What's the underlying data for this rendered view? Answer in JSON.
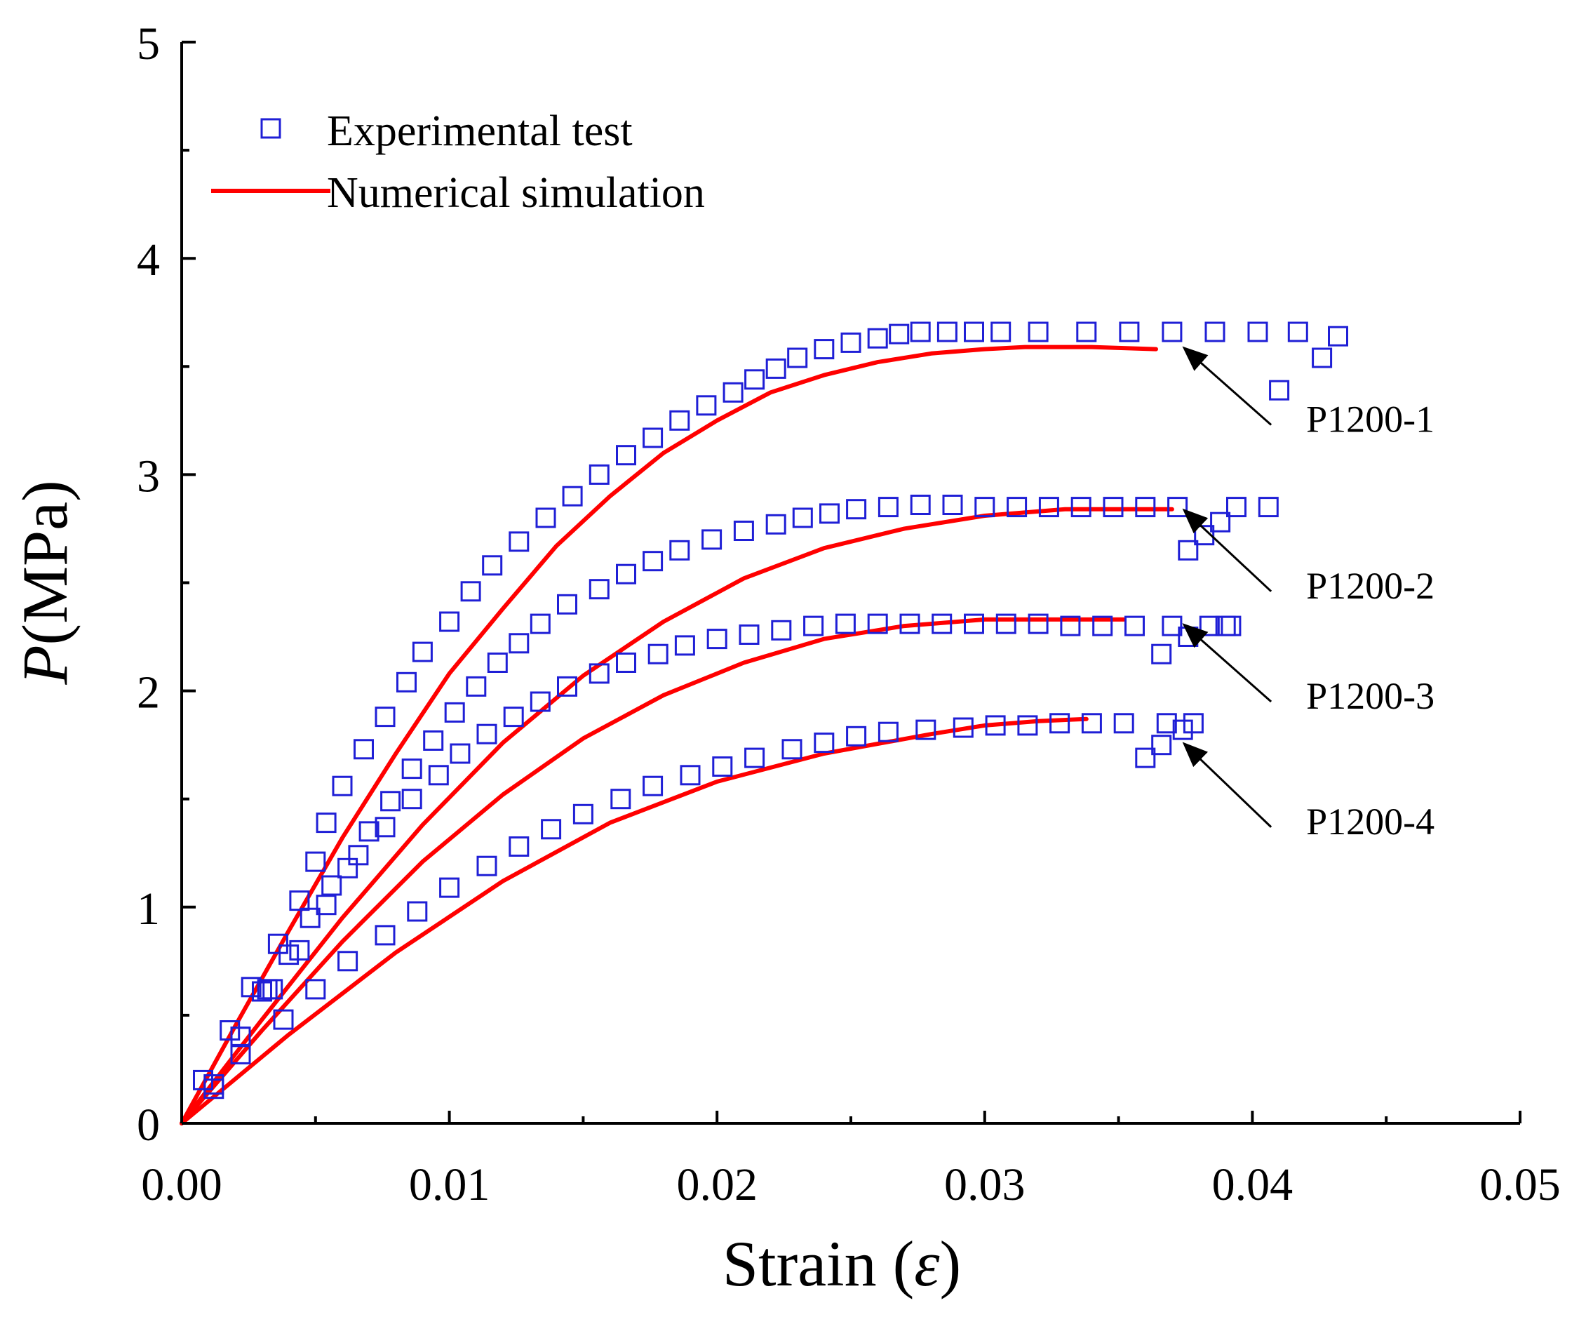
{
  "chart_data": {
    "type": "scatter",
    "title": "",
    "xlabel_main": "Strain (",
    "xlabel_symbol": "ε",
    "xlabel_close": ")",
    "ylabel_symbol": "P",
    "ylabel_unit": "(MPa)",
    "xlim": [
      0,
      0.05
    ],
    "ylim": [
      0,
      5
    ],
    "xticks": [
      0.0,
      0.01,
      0.02,
      0.03,
      0.04,
      0.05
    ],
    "xtick_labels": [
      "0.00",
      "0.01",
      "0.02",
      "0.03",
      "0.04",
      "0.05"
    ],
    "yticks": [
      0,
      1,
      2,
      3,
      4,
      5
    ],
    "ytick_labels": [
      "0",
      "1",
      "2",
      "3",
      "4",
      "5"
    ],
    "grid": false,
    "legend": {
      "position": "top-left",
      "entries": [
        {
          "label": "Experimental test",
          "marker": "open-square",
          "color": "#1f1fd6"
        },
        {
          "label": "Numerical simulation",
          "marker": "line",
          "color": "#ff0000"
        }
      ]
    },
    "colors": {
      "experimental": "#1f1fd6",
      "simulation": "#ff0000",
      "axis": "#000000"
    },
    "annotations": [
      {
        "text": "P1200-1",
        "arrow_to": [
          0.0375,
          3.58
        ],
        "arrow_from": [
          0.0407,
          3.23
        ]
      },
      {
        "text": "P1200-2",
        "arrow_to": [
          0.0375,
          2.83
        ],
        "arrow_from": [
          0.0407,
          2.46
        ]
      },
      {
        "text": "P1200-3",
        "arrow_to": [
          0.0375,
          2.3
        ],
        "arrow_from": [
          0.0407,
          1.95
        ]
      },
      {
        "text": "P1200-4",
        "arrow_to": [
          0.0375,
          1.75
        ],
        "arrow_from": [
          0.0407,
          1.37
        ]
      }
    ],
    "series": [
      {
        "name": "P1200-1 Experimental test",
        "kind": "experimental",
        "x": [
          0.0008,
          0.0012,
          0.0018,
          0.0022,
          0.0026,
          0.0032,
          0.0036,
          0.0044,
          0.005,
          0.0054,
          0.006,
          0.0068,
          0.0076,
          0.0084,
          0.009,
          0.01,
          0.0108,
          0.0116,
          0.0126,
          0.0136,
          0.0146,
          0.0156,
          0.0166,
          0.0176,
          0.0186,
          0.0196,
          0.0206,
          0.0214,
          0.0222,
          0.023,
          0.024,
          0.025,
          0.026,
          0.0268,
          0.0276,
          0.0286,
          0.0296,
          0.0306,
          0.032,
          0.0338,
          0.0354,
          0.037,
          0.0386,
          0.0402,
          0.0417,
          0.041,
          0.0426,
          0.0432
        ],
        "y": [
          0.2,
          0.16,
          0.43,
          0.4,
          0.63,
          0.62,
          0.83,
          1.03,
          1.21,
          1.39,
          1.56,
          1.73,
          1.88,
          2.04,
          2.18,
          2.32,
          2.46,
          2.58,
          2.69,
          2.8,
          2.9,
          3.0,
          3.09,
          3.17,
          3.25,
          3.32,
          3.38,
          3.44,
          3.49,
          3.54,
          3.58,
          3.61,
          3.63,
          3.65,
          3.66,
          3.66,
          3.66,
          3.66,
          3.66,
          3.66,
          3.66,
          3.66,
          3.66,
          3.66,
          3.66,
          3.39,
          3.54,
          3.64
        ]
      },
      {
        "name": "P1200-2 Experimental test",
        "kind": "experimental",
        "x": [
          0.0022,
          0.0034,
          0.0044,
          0.0054,
          0.0062,
          0.007,
          0.0078,
          0.0086,
          0.0094,
          0.0102,
          0.011,
          0.0118,
          0.0126,
          0.0134,
          0.0144,
          0.0156,
          0.0166,
          0.0176,
          0.0186,
          0.0198,
          0.021,
          0.0222,
          0.0232,
          0.0242,
          0.0252,
          0.0264,
          0.0276,
          0.0288,
          0.03,
          0.0312,
          0.0324,
          0.0336,
          0.0348,
          0.036,
          0.0372,
          0.0376,
          0.0382,
          0.0388,
          0.0394,
          0.0406
        ],
        "y": [
          0.32,
          0.62,
          0.8,
          1.01,
          1.18,
          1.35,
          1.49,
          1.64,
          1.77,
          1.9,
          2.02,
          2.13,
          2.22,
          2.31,
          2.4,
          2.47,
          2.54,
          2.6,
          2.65,
          2.7,
          2.74,
          2.77,
          2.8,
          2.82,
          2.84,
          2.85,
          2.86,
          2.86,
          2.85,
          2.85,
          2.85,
          2.85,
          2.85,
          2.85,
          2.85,
          2.65,
          2.72,
          2.78,
          2.85,
          2.85
        ]
      },
      {
        "name": "P1200-3 Experimental test",
        "kind": "experimental",
        "x": [
          0.0012,
          0.0022,
          0.003,
          0.004,
          0.0048,
          0.0056,
          0.0066,
          0.0076,
          0.0086,
          0.0096,
          0.0104,
          0.0114,
          0.0124,
          0.0134,
          0.0144,
          0.0156,
          0.0166,
          0.0178,
          0.0188,
          0.02,
          0.0212,
          0.0224,
          0.0236,
          0.0248,
          0.026,
          0.0272,
          0.0284,
          0.0296,
          0.0308,
          0.032,
          0.0332,
          0.0344,
          0.0356,
          0.0366,
          0.037,
          0.0376,
          0.0384,
          0.039,
          0.0392
        ],
        "y": [
          0.18,
          0.4,
          0.61,
          0.78,
          0.95,
          1.1,
          1.24,
          1.37,
          1.5,
          1.61,
          1.71,
          1.8,
          1.88,
          1.95,
          2.02,
          2.08,
          2.13,
          2.17,
          2.21,
          2.24,
          2.26,
          2.28,
          2.3,
          2.31,
          2.31,
          2.31,
          2.31,
          2.31,
          2.31,
          2.31,
          2.3,
          2.3,
          2.3,
          2.17,
          2.3,
          2.25,
          2.3,
          2.3,
          2.3
        ]
      },
      {
        "name": "P1200-4 Experimental test",
        "kind": "experimental",
        "x": [
          0.0038,
          0.005,
          0.0062,
          0.0076,
          0.0088,
          0.01,
          0.0114,
          0.0126,
          0.0138,
          0.015,
          0.0164,
          0.0176,
          0.019,
          0.0202,
          0.0214,
          0.0228,
          0.024,
          0.0252,
          0.0264,
          0.0278,
          0.0292,
          0.0304,
          0.0316,
          0.0328,
          0.034,
          0.0352,
          0.036,
          0.0366,
          0.0368,
          0.0374,
          0.0378
        ],
        "y": [
          0.48,
          0.62,
          0.75,
          0.87,
          0.98,
          1.09,
          1.19,
          1.28,
          1.36,
          1.43,
          1.5,
          1.56,
          1.61,
          1.65,
          1.69,
          1.73,
          1.76,
          1.79,
          1.81,
          1.82,
          1.83,
          1.84,
          1.84,
          1.85,
          1.85,
          1.85,
          1.69,
          1.75,
          1.85,
          1.82,
          1.85
        ]
      },
      {
        "name": "P1200-1 Numerical simulation",
        "kind": "simulation",
        "x": [
          0.0,
          0.002,
          0.004,
          0.006,
          0.008,
          0.01,
          0.012,
          0.014,
          0.016,
          0.018,
          0.02,
          0.022,
          0.024,
          0.026,
          0.028,
          0.03,
          0.0315,
          0.034,
          0.0364
        ],
        "y": [
          0.0,
          0.45,
          0.89,
          1.32,
          1.71,
          2.08,
          2.38,
          2.67,
          2.9,
          3.1,
          3.25,
          3.38,
          3.46,
          3.52,
          3.56,
          3.58,
          3.59,
          3.59,
          3.58
        ]
      },
      {
        "name": "P1200-2 Numerical simulation",
        "kind": "simulation",
        "x": [
          0.0,
          0.003,
          0.006,
          0.009,
          0.012,
          0.015,
          0.018,
          0.021,
          0.024,
          0.027,
          0.03,
          0.033,
          0.035,
          0.037
        ],
        "y": [
          0.0,
          0.48,
          0.95,
          1.38,
          1.76,
          2.07,
          2.32,
          2.52,
          2.66,
          2.75,
          2.81,
          2.84,
          2.84,
          2.84
        ]
      },
      {
        "name": "P1200-3 Numerical simulation",
        "kind": "simulation",
        "x": [
          0.0,
          0.003,
          0.006,
          0.009,
          0.012,
          0.015,
          0.018,
          0.021,
          0.024,
          0.027,
          0.03,
          0.033,
          0.0352
        ],
        "y": [
          0.0,
          0.43,
          0.84,
          1.21,
          1.52,
          1.78,
          1.98,
          2.13,
          2.24,
          2.3,
          2.33,
          2.33,
          2.33
        ]
      },
      {
        "name": "P1200-4 Numerical simulation",
        "kind": "simulation",
        "x": [
          0.0,
          0.004,
          0.008,
          0.012,
          0.016,
          0.02,
          0.024,
          0.028,
          0.03,
          0.032,
          0.0338
        ],
        "y": [
          0.0,
          0.41,
          0.79,
          1.12,
          1.39,
          1.58,
          1.71,
          1.8,
          1.84,
          1.86,
          1.87
        ]
      }
    ]
  }
}
